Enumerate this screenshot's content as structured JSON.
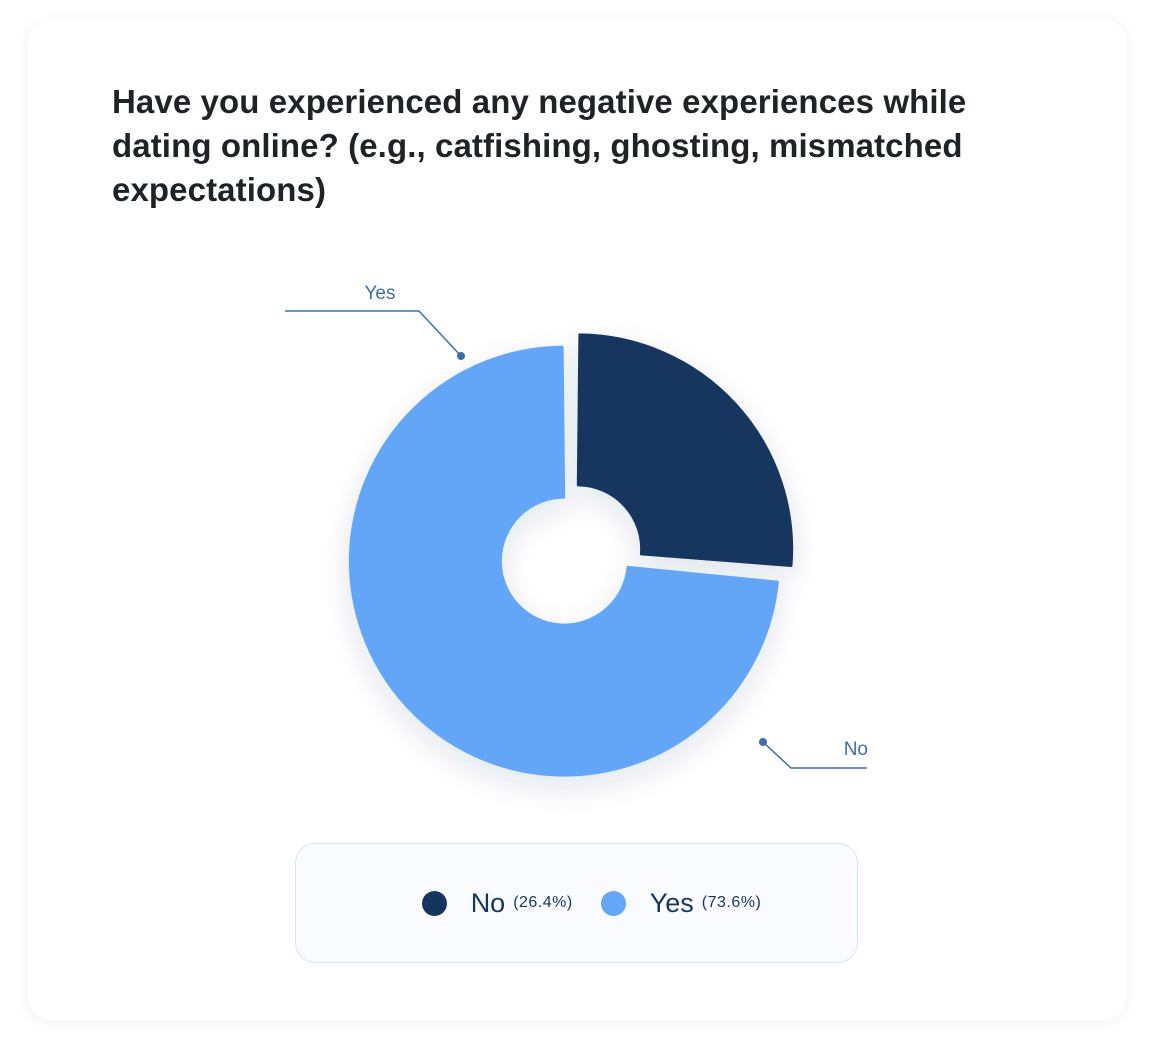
{
  "chart_data": {
    "type": "pie",
    "variant": "donut",
    "title": "Have you experienced any negative experiences while dating online? (e.g., catfishing, ghosting, mismatched expectations)",
    "slices": [
      {
        "label": "No",
        "value": 26.4,
        "percent_text": "(26.4%)",
        "color": "#15355f"
      },
      {
        "label": "Yes",
        "value": 73.6,
        "percent_text": "(73.6%)",
        "color": "#64a6f7"
      }
    ],
    "callout_color": "#3d6eac",
    "legend_position": "bottom"
  }
}
